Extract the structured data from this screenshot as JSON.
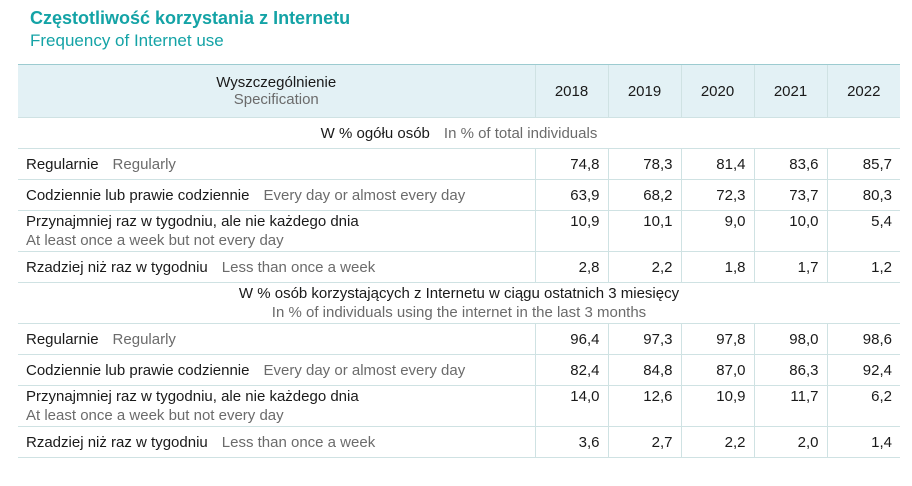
{
  "title": {
    "pl": "Częstotliwość korzystania z Internetu",
    "en": "Frequency of Internet use"
  },
  "header": {
    "spec_pl": "Wyszczególnienie",
    "spec_en": "Specification",
    "years": [
      "2018",
      "2019",
      "2020",
      "2021",
      "2022"
    ]
  },
  "sections": [
    {
      "pl": "W % ogółu osób",
      "en": "In % of total individuals",
      "rows": [
        {
          "pl": "Regularnie",
          "en": "Regularly",
          "values": [
            "74,8",
            "78,3",
            "81,4",
            "83,6",
            "85,7"
          ]
        },
        {
          "pl": "Codziennie lub prawie codziennie",
          "en": "Every day or almost every day",
          "values": [
            "63,9",
            "68,2",
            "72,3",
            "73,7",
            "80,3"
          ]
        },
        {
          "pl": "Przynajmniej raz w tygodniu, ale nie każdego dnia",
          "en": "At least once a week but not every day",
          "values": [
            "10,9",
            "10,1",
            "9,0",
            "10,0",
            "5,4"
          ]
        },
        {
          "pl": "Rzadziej niż raz w tygodniu",
          "en": "Less than once a week",
          "values": [
            "2,8",
            "2,2",
            "1,8",
            "1,7",
            "1,2"
          ]
        }
      ]
    },
    {
      "pl": "W % osób korzystających z Internetu w ciągu ostatnich 3 miesięcy",
      "en": "In % of individuals using the internet in the last 3 months",
      "rows": [
        {
          "pl": "Regularnie",
          "en": "Regularly",
          "values": [
            "96,4",
            "97,3",
            "97,8",
            "98,0",
            "98,6"
          ]
        },
        {
          "pl": "Codziennie lub prawie codziennie",
          "en": "Every day or almost every day",
          "values": [
            "82,4",
            "84,8",
            "87,0",
            "86,3",
            "92,4"
          ]
        },
        {
          "pl": "Przynajmniej raz w tygodniu, ale nie każdego dnia",
          "en": "At least once a week but not every day",
          "values": [
            "14,0",
            "12,6",
            "10,9",
            "11,7",
            "6,2"
          ]
        },
        {
          "pl": "Rzadziej niż raz w tygodniu",
          "en": "Less than once a week",
          "values": [
            "3,6",
            "2,7",
            "2,2",
            "2,0",
            "1,4"
          ]
        }
      ]
    }
  ]
}
